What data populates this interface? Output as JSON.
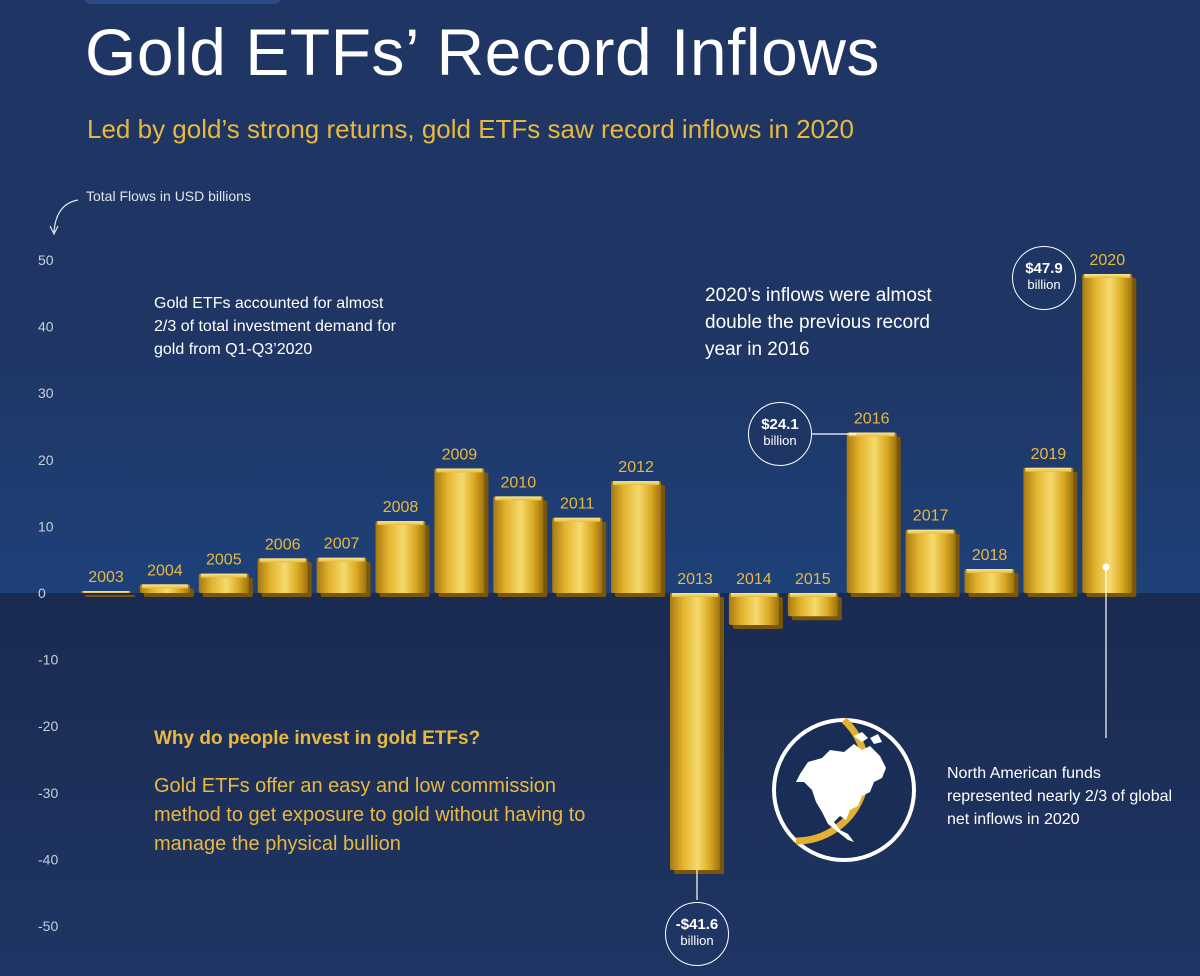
{
  "title": "Gold ETFs’ Record Inflows",
  "subtitle": "Led by gold’s strong returns, gold ETFs saw record inflows in 2020",
  "unit_label": "Total Flows in USD billions",
  "notes": {
    "investment_demand": "Gold ETFs accounted for almost 2/3 of total investment demand for gold from Q1-Q3’2020",
    "record": "2020’s inflows were almost double the previous record year in 2016",
    "why_title": "Why do people invest in gold ETFs?",
    "why_text": "Gold ETFs offer an easy and low commission method to get exposure to gold without having to manage the physical bullion",
    "north_america": "North American funds represented nearly 2/3 of global net inflows in 2020"
  },
  "callouts": {
    "c2016": {
      "value": "$24.1",
      "unit": "billion"
    },
    "c2020": {
      "value": "$47.9",
      "unit": "billion"
    },
    "c2013": {
      "value": "-$41.6",
      "unit": "billion"
    }
  },
  "colors": {
    "background": "#1f3563",
    "gold_light": "#f3d46a",
    "gold_mid": "#d9a921",
    "gold_dark": "#9c7210",
    "accent_text": "#e8b93e",
    "axis_text": "#c9d0de"
  },
  "icons": {
    "map": "north-america-map-icon"
  },
  "chart_data": {
    "type": "bar",
    "title": "Gold ETFs’ Record Inflows",
    "ylabel": "Total Flows in USD billions",
    "ylim": [
      -50,
      50
    ],
    "yticks": [
      50,
      40,
      30,
      20,
      10,
      0,
      -10,
      -20,
      -30,
      -40,
      -50
    ],
    "grid": false,
    "categories": [
      "2003",
      "2004",
      "2005",
      "2006",
      "2007",
      "2008",
      "2009",
      "2010",
      "2011",
      "2012",
      "2013",
      "2014",
      "2015",
      "2016",
      "2017",
      "2018",
      "2019",
      "2020"
    ],
    "values": [
      0.3,
      1.3,
      2.9,
      5.2,
      5.3,
      10.8,
      18.7,
      14.5,
      11.3,
      16.8,
      -41.6,
      -4.8,
      -3.5,
      24.1,
      9.5,
      3.6,
      18.8,
      47.9
    ]
  }
}
